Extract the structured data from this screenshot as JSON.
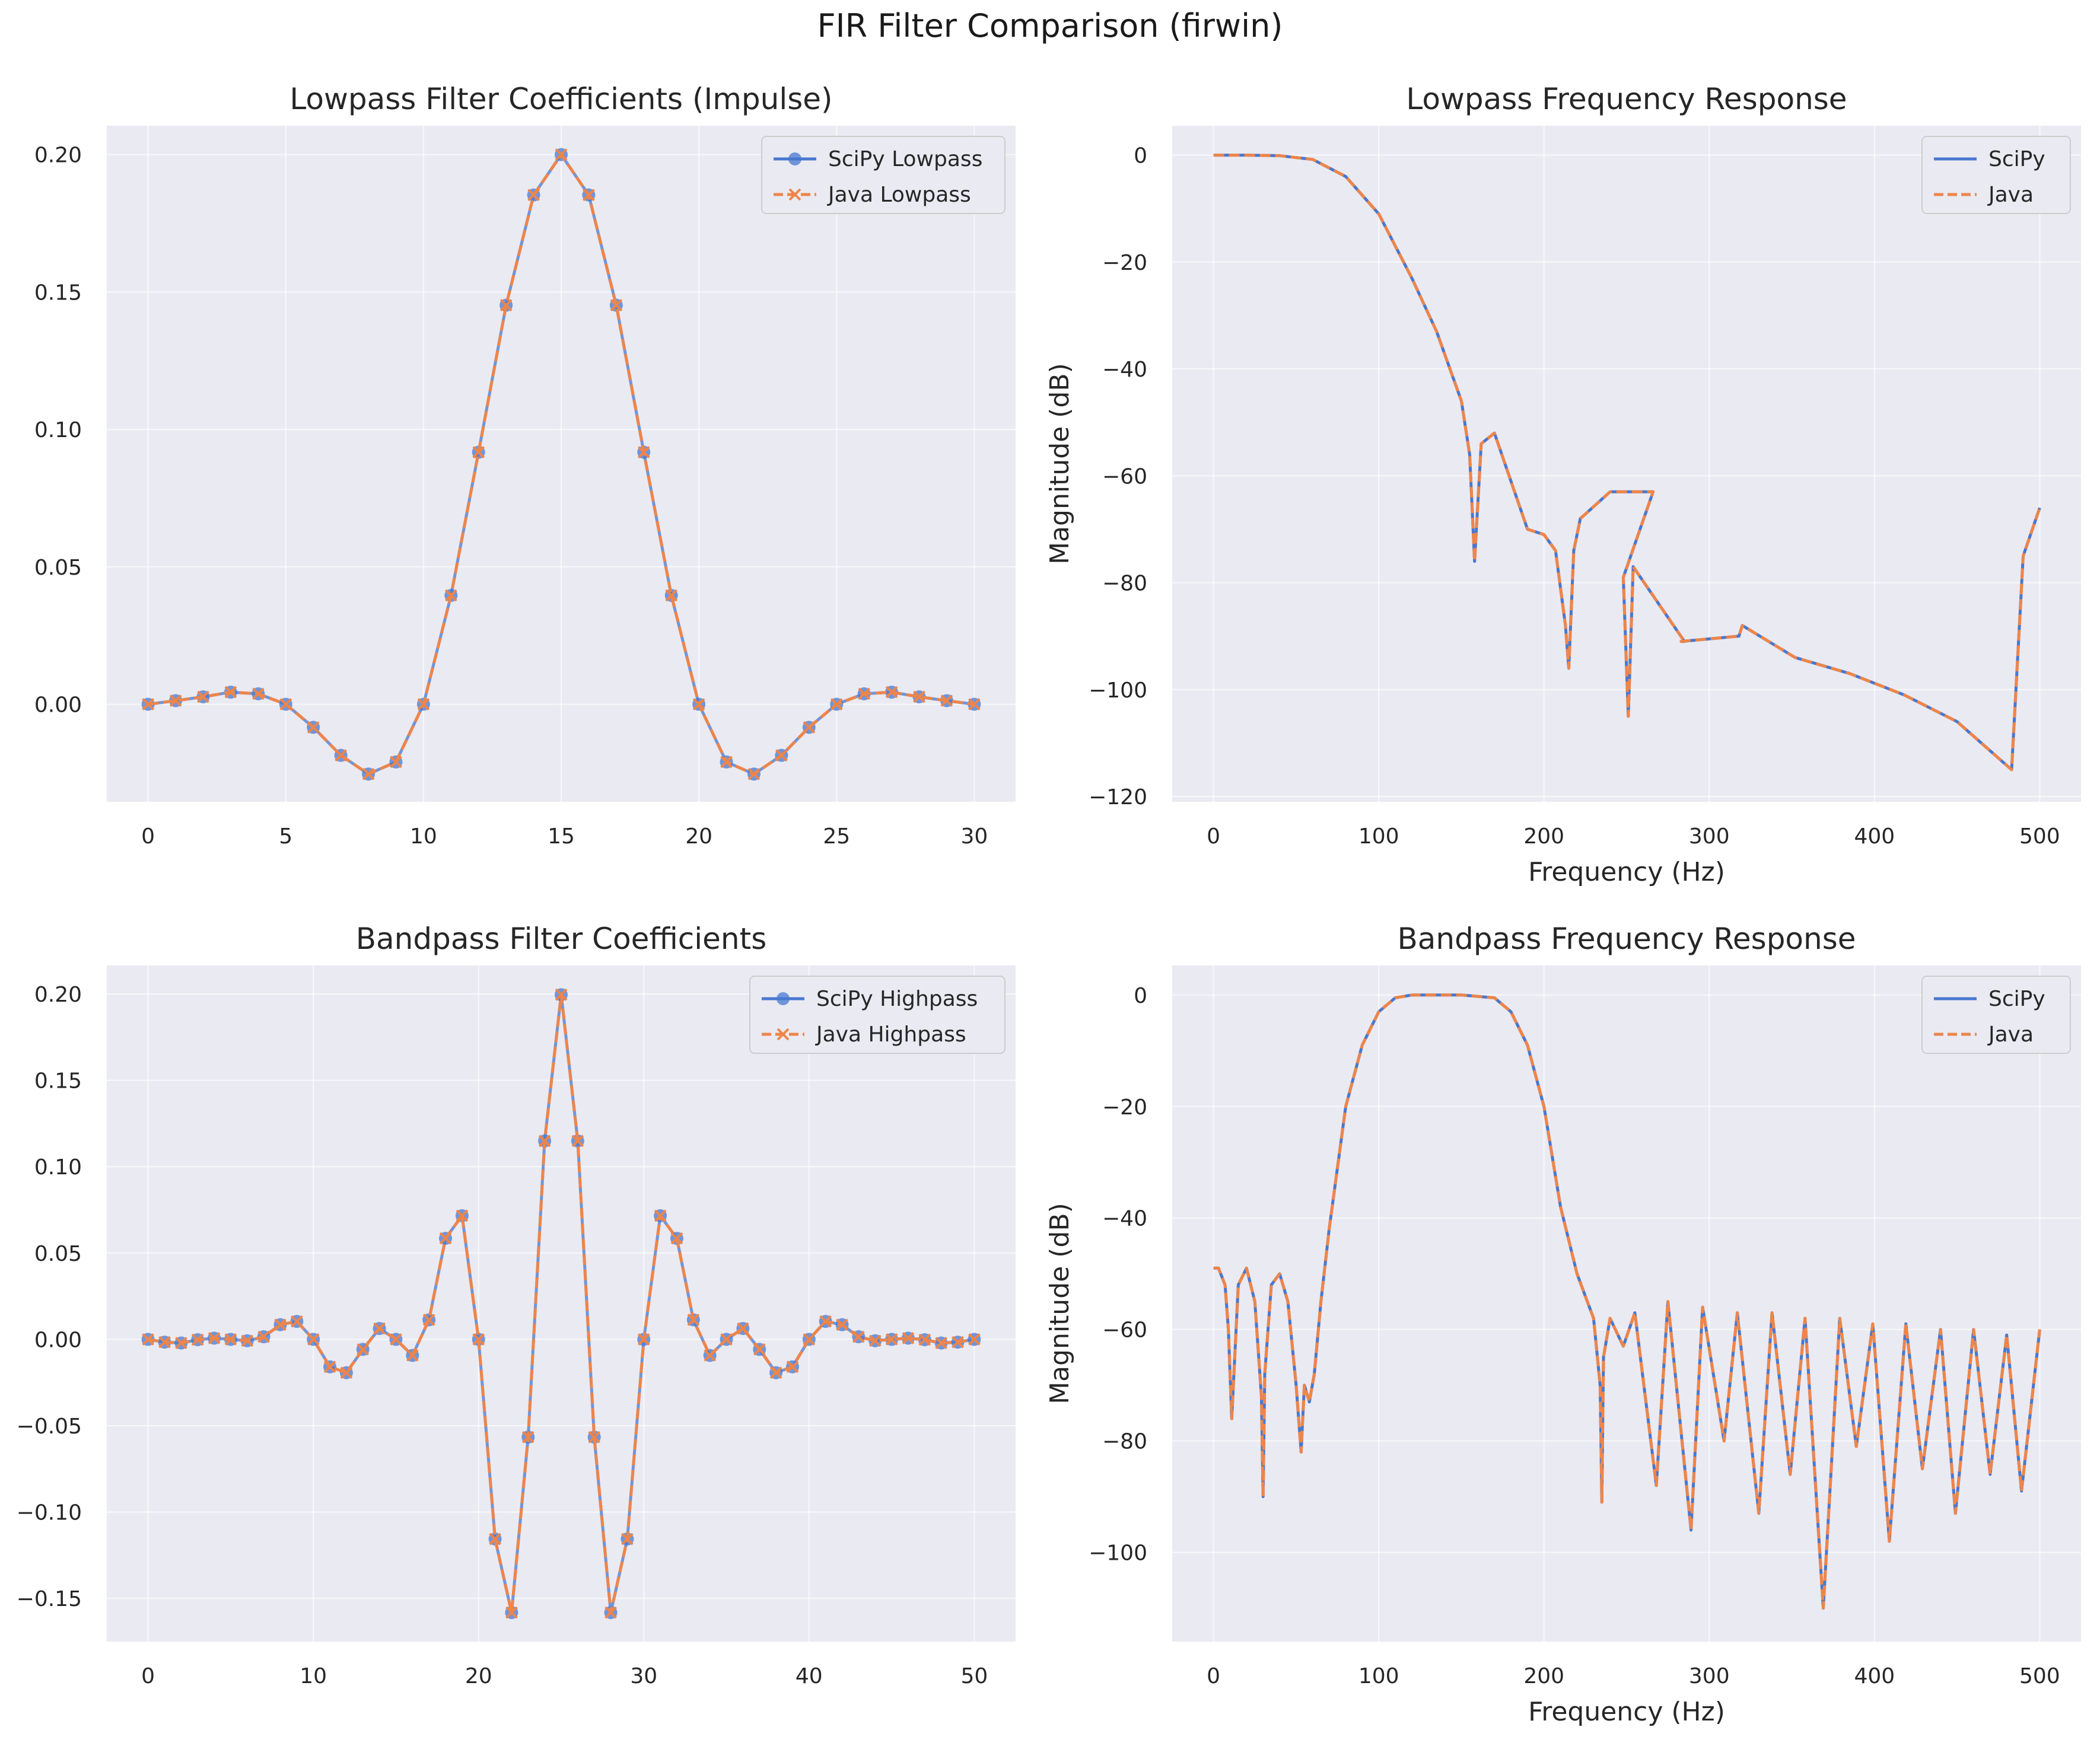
{
  "figure": {
    "suptitle": "FIR Filter Comparison (firwin)",
    "colors": {
      "background": "#eaeaf2",
      "grid": "#ffffff",
      "blue": "#4878d0",
      "orange": "#ee854a",
      "text": "#262626"
    }
  },
  "chart_data": [
    {
      "id": "lowpass_coeffs",
      "type": "line",
      "title": "Lowpass Filter Coefficients (Impulse)",
      "xlabel": "",
      "ylabel": "",
      "xlim": [
        -1.5,
        31.5
      ],
      "ylim": [
        -0.0355,
        0.2105
      ],
      "xticks": [
        0,
        5,
        10,
        15,
        20,
        25,
        30
      ],
      "xtick_labels": [
        "0",
        "5",
        "10",
        "15",
        "20",
        "25",
        "30"
      ],
      "yticks": [
        0.0,
        0.05,
        0.1,
        0.15,
        0.2
      ],
      "ytick_labels": [
        "0.00",
        "0.05",
        "0.10",
        "0.15",
        "0.20"
      ],
      "legend_position": "top-right",
      "x": [
        0,
        1,
        2,
        3,
        4,
        5,
        6,
        7,
        8,
        9,
        10,
        11,
        12,
        13,
        14,
        15,
        16,
        17,
        18,
        19,
        20,
        21,
        22,
        23,
        24,
        25,
        26,
        27,
        28,
        29,
        30
      ],
      "series": [
        {
          "name": "SciPy Lowpass",
          "style": "solid",
          "marker": "circle",
          "color": "#4878d0",
          "values": [
            0.0,
            0.0013,
            0.0027,
            0.0044,
            0.0038,
            0.0,
            -0.0084,
            -0.0186,
            -0.0254,
            -0.021,
            0.0,
            0.0396,
            0.0917,
            0.1452,
            0.1853,
            0.2,
            0.1853,
            0.1452,
            0.0917,
            0.0396,
            0.0,
            -0.021,
            -0.0254,
            -0.0186,
            -0.0084,
            0.0,
            0.0038,
            0.0044,
            0.0027,
            0.0013,
            0.0
          ]
        },
        {
          "name": "Java Lowpass",
          "style": "dashed",
          "marker": "x",
          "color": "#ee854a",
          "values": [
            0.0,
            0.0013,
            0.0027,
            0.0044,
            0.0038,
            0.0,
            -0.0084,
            -0.0186,
            -0.0254,
            -0.021,
            0.0,
            0.0396,
            0.0917,
            0.1452,
            0.1853,
            0.2,
            0.1853,
            0.1452,
            0.0917,
            0.0396,
            0.0,
            -0.021,
            -0.0254,
            -0.0186,
            -0.0084,
            0.0,
            0.0038,
            0.0044,
            0.0027,
            0.0013,
            0.0
          ]
        }
      ]
    },
    {
      "id": "lowpass_freq",
      "type": "line",
      "title": "Lowpass Frequency Response",
      "xlabel": "Frequency (Hz)",
      "ylabel": "Magnitude (dB)",
      "xlim": [
        -25,
        525
      ],
      "ylim": [
        -121,
        5.5
      ],
      "xticks": [
        0,
        100,
        200,
        300,
        400,
        500
      ],
      "xtick_labels": [
        "0",
        "100",
        "200",
        "300",
        "400",
        "500"
      ],
      "yticks": [
        0,
        -20,
        -40,
        -60,
        -80,
        -100,
        -120
      ],
      "ytick_labels": [
        "0",
        "−20",
        "−40",
        "−60",
        "−80",
        "−100",
        "−120"
      ],
      "legend_position": "top-right",
      "series": [
        {
          "name": "SciPy",
          "style": "solid",
          "color": "#4878d0",
          "x": [
            0,
            20,
            40,
            60,
            80,
            100,
            120,
            135,
            150,
            155,
            158,
            162,
            170,
            180,
            190,
            200,
            207,
            213,
            215,
            218,
            222,
            240,
            266,
            248,
            251,
            254,
            285,
            283,
            318,
            320,
            352,
            385,
            418,
            450,
            483,
            490,
            500
          ],
          "y": [
            0,
            0,
            -0.1,
            -0.8,
            -4,
            -11,
            -23,
            -33,
            -46,
            -56,
            -76,
            -54,
            -52,
            -61,
            -70,
            -71,
            -74,
            -88,
            -96,
            -74,
            -68,
            -63,
            -63,
            -79,
            -105,
            -77,
            -91,
            -91,
            -90,
            -88,
            -94,
            -97,
            -101,
            -106,
            -115,
            -75,
            -66
          ]
        },
        {
          "name": "Java",
          "style": "dashed",
          "color": "#ee854a",
          "x": [
            0,
            20,
            40,
            60,
            80,
            100,
            120,
            135,
            150,
            155,
            158,
            162,
            170,
            180,
            190,
            200,
            207,
            213,
            215,
            218,
            222,
            240,
            266,
            248,
            251,
            254,
            285,
            283,
            318,
            320,
            352,
            385,
            418,
            450,
            483,
            490,
            500
          ],
          "y": [
            0,
            0,
            -0.1,
            -0.8,
            -4,
            -11,
            -23,
            -33,
            -46,
            -56,
            -76,
            -54,
            -52,
            -61,
            -70,
            -71,
            -74,
            -88,
            -96,
            -74,
            -68,
            -63,
            -63,
            -79,
            -105,
            -77,
            -91,
            -91,
            -90,
            -88,
            -94,
            -97,
            -101,
            -106,
            -115,
            -75,
            -66
          ]
        }
      ]
    },
    {
      "id": "bandpass_coeffs",
      "type": "line",
      "title": "Bandpass Filter Coefficients",
      "xlabel": "",
      "ylabel": "",
      "xlim": [
        -2.5,
        52.5
      ],
      "ylim": [
        -0.175,
        0.2165
      ],
      "xticks": [
        0,
        10,
        20,
        30,
        40,
        50
      ],
      "xtick_labels": [
        "0",
        "10",
        "20",
        "30",
        "40",
        "50"
      ],
      "yticks": [
        0.2,
        0.15,
        0.1,
        0.05,
        0.0,
        -0.05,
        -0.1,
        -0.15
      ],
      "ytick_labels": [
        "0.20",
        "0.15",
        "0.10",
        "0.05",
        "0.00",
        "−0.05",
        "−0.10",
        "−0.15"
      ],
      "legend_position": "top-right",
      "x": [
        0,
        1,
        2,
        3,
        4,
        5,
        6,
        7,
        8,
        9,
        10,
        11,
        12,
        13,
        14,
        15,
        16,
        17,
        18,
        19,
        20,
        21,
        22,
        23,
        24,
        25,
        26,
        27,
        28,
        29,
        30,
        31,
        32,
        33,
        34,
        35,
        36,
        37,
        38,
        39,
        40,
        41,
        42,
        43,
        44,
        45,
        46,
        47,
        48,
        49,
        50
      ],
      "series": [
        {
          "name": "SciPy Highpass",
          "style": "solid",
          "marker": "circle",
          "color": "#4878d0",
          "values": [
            0.0,
            -0.0016,
            -0.0021,
            -0.0002,
            0.0007,
            0.0,
            -0.0008,
            0.0015,
            0.0085,
            0.0104,
            0.0,
            -0.0159,
            -0.0193,
            -0.0058,
            0.0063,
            0.0,
            -0.0093,
            0.0113,
            0.0585,
            0.0716,
            0.0,
            -0.1156,
            -0.1582,
            -0.0566,
            0.1149,
            0.1996,
            0.1149,
            -0.0566,
            -0.1582,
            -0.1156,
            0.0,
            0.0716,
            0.0585,
            0.0113,
            -0.0093,
            0.0,
            0.0063,
            -0.0058,
            -0.0193,
            -0.0159,
            0.0,
            0.0104,
            0.0085,
            0.0015,
            -0.0008,
            0.0,
            0.0007,
            -0.0002,
            -0.0021,
            -0.0016,
            0.0
          ]
        },
        {
          "name": "Java Highpass",
          "style": "dashed",
          "marker": "x",
          "color": "#ee854a",
          "values": [
            0.0,
            -0.0016,
            -0.0021,
            -0.0002,
            0.0007,
            0.0,
            -0.0008,
            0.0015,
            0.0085,
            0.0104,
            0.0,
            -0.0159,
            -0.0193,
            -0.0058,
            0.0063,
            0.0,
            -0.0093,
            0.0113,
            0.0585,
            0.0716,
            0.0,
            -0.1156,
            -0.1582,
            -0.0566,
            0.1149,
            0.1996,
            0.1149,
            -0.0566,
            -0.1582,
            -0.1156,
            0.0,
            0.0716,
            0.0585,
            0.0113,
            -0.0093,
            0.0,
            0.0063,
            -0.0058,
            -0.0193,
            -0.0159,
            0.0,
            0.0104,
            0.0085,
            0.0015,
            -0.0008,
            0.0,
            0.0007,
            -0.0002,
            -0.0021,
            -0.0016,
            0.0
          ]
        }
      ]
    },
    {
      "id": "bandpass_freq",
      "type": "line",
      "title": "Bandpass Frequency Response",
      "xlabel": "Frequency (Hz)",
      "ylabel": "Magnitude (dB)",
      "xlim": [
        -25,
        525
      ],
      "ylim": [
        -116,
        5.3
      ],
      "xticks": [
        0,
        100,
        200,
        300,
        400,
        500
      ],
      "xtick_labels": [
        "0",
        "100",
        "200",
        "300",
        "400",
        "500"
      ],
      "yticks": [
        0,
        -20,
        -40,
        -60,
        -80,
        -100
      ],
      "ytick_labels": [
        "0",
        "−20",
        "−40",
        "−60",
        "−80",
        "−100"
      ],
      "legend_position": "top-right",
      "series": [
        {
          "name": "SciPy",
          "style": "solid",
          "color": "#4878d0",
          "x": [
            0,
            3,
            7,
            9,
            11,
            15,
            20,
            25,
            29,
            30,
            31,
            35,
            40,
            45,
            50,
            53,
            55,
            58,
            61,
            65,
            70,
            80,
            90,
            100,
            110,
            120,
            130,
            150,
            170,
            180,
            190,
            200,
            210,
            220,
            230,
            234,
            235,
            236,
            240,
            248,
            255,
            268,
            275,
            289,
            296,
            309,
            317,
            330,
            338,
            349,
            358,
            369,
            379,
            389,
            399,
            409,
            419,
            429,
            440,
            449,
            460,
            470,
            480,
            489,
            500
          ],
          "y": [
            -49,
            -49,
            -52,
            -60,
            -76,
            -52,
            -49,
            -55,
            -72,
            -90,
            -68,
            -52,
            -50,
            -55,
            -70,
            -82,
            -70,
            -73,
            -68,
            -55,
            -42,
            -20,
            -9,
            -3,
            -0.5,
            0,
            0,
            0,
            -0.5,
            -3,
            -9,
            -20,
            -38,
            -50,
            -58,
            -70,
            -91,
            -65,
            -58,
            -63,
            -57,
            -88,
            -55,
            -96,
            -56,
            -80,
            -57,
            -93,
            -57,
            -86,
            -58,
            -110,
            -58,
            -81,
            -59,
            -98,
            -59,
            -85,
            -60,
            -93,
            -60,
            -86,
            -61,
            -89,
            -60
          ]
        },
        {
          "name": "Java",
          "style": "dashed",
          "color": "#ee854a",
          "x": [
            0,
            3,
            7,
            9,
            11,
            15,
            20,
            25,
            29,
            30,
            31,
            35,
            40,
            45,
            50,
            53,
            55,
            58,
            61,
            65,
            70,
            80,
            90,
            100,
            110,
            120,
            130,
            150,
            170,
            180,
            190,
            200,
            210,
            220,
            230,
            234,
            235,
            236,
            240,
            248,
            255,
            268,
            275,
            289,
            296,
            309,
            317,
            330,
            338,
            349,
            358,
            369,
            379,
            389,
            399,
            409,
            419,
            429,
            440,
            449,
            460,
            470,
            480,
            489,
            500
          ],
          "y": [
            -49,
            -49,
            -52,
            -60,
            -76,
            -52,
            -49,
            -55,
            -72,
            -90,
            -68,
            -52,
            -50,
            -55,
            -70,
            -82,
            -70,
            -73,
            -68,
            -55,
            -42,
            -20,
            -9,
            -3,
            -0.5,
            0,
            0,
            0,
            -0.5,
            -3,
            -9,
            -20,
            -38,
            -50,
            -58,
            -70,
            -91,
            -65,
            -58,
            -63,
            -57,
            -88,
            -55,
            -96,
            -56,
            -80,
            -57,
            -93,
            -57,
            -86,
            -58,
            -110,
            -58,
            -81,
            -59,
            -98,
            -59,
            -85,
            -60,
            -93,
            -60,
            -86,
            -61,
            -89,
            -60
          ]
        }
      ]
    }
  ]
}
